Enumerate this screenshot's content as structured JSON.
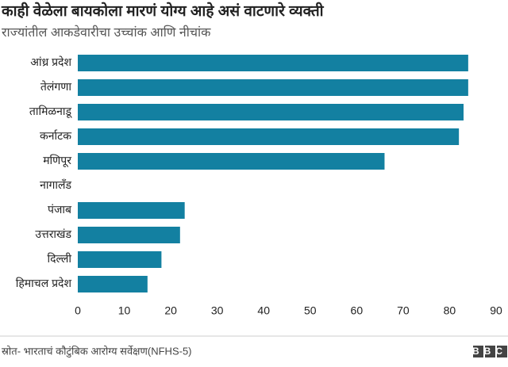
{
  "chart_data": {
    "type": "bar",
    "orientation": "horizontal",
    "title": "काही वेळेला बायकोला मारणं योग्य आहे असं वाटणारे व्यक्ती",
    "subtitle": "राज्यांतील आकडेवारीचा उच्चांक आणि नीचांक",
    "categories": [
      "आंध्र प्रदेश",
      "तेलंगणा",
      "तामिळनाडू",
      "कर्नाटक",
      "मणिपूर",
      "नागालँड",
      "पंजाब",
      "उत्तराखंड",
      "दिल्ली",
      "हिमाचल प्रदेश"
    ],
    "values": [
      84,
      84,
      83,
      82,
      66,
      null,
      23,
      22,
      18,
      15
    ],
    "color": "#1380a1",
    "xlim": [
      0,
      90
    ],
    "xticks": [
      0,
      10,
      20,
      30,
      40,
      50,
      60,
      70,
      80,
      90
    ],
    "grid": false,
    "source": "स्रोत- भारताचं कौटुंबिक आरोग्य सर्वेक्षण(NFHS-5)",
    "logo": "BBC"
  }
}
